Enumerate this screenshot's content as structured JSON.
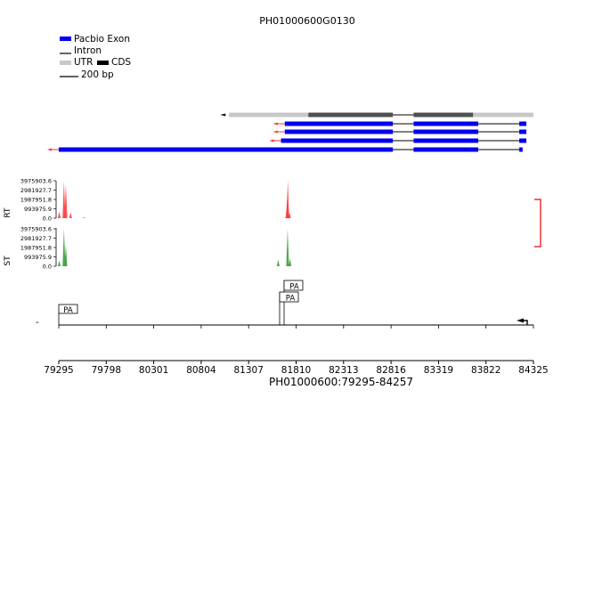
{
  "title": "PH01000600G0130",
  "legend": {
    "pacbio_exon": "Pacbio Exon",
    "intron": "Intron",
    "utr": "UTR",
    "cds": "CDS",
    "scale_bar": "200 bp"
  },
  "colors": {
    "exon": "#0000ee",
    "utr": "#c8c8c8",
    "cds": "#505050",
    "rt": "#ff3333",
    "st": "#339933",
    "bracket": "#ee0000"
  },
  "tracks": {
    "rt_label": "RT",
    "st_label": "ST",
    "rt_ticks": [
      "3975903.6",
      "2981927.7",
      "1987951.8",
      "993975.9",
      "0.0"
    ],
    "st_ticks": [
      "3975903.6",
      "2981927.7",
      "1987951.8",
      "993975.9",
      "0.0"
    ]
  },
  "pa_track": {
    "labels": [
      "PA",
      "PA",
      "PA"
    ],
    "dash": "-"
  },
  "axis": {
    "ticks": [
      "79295",
      "79798",
      "80301",
      "80804",
      "81307",
      "81810",
      "82313",
      "82816",
      "83319",
      "83822",
      "84325"
    ],
    "label": "PH01000600:79295-84257"
  },
  "chart_data": {
    "type": "area",
    "x_range": [
      79295,
      84325
    ],
    "gene_model": {
      "strand": "-",
      "utr": [
        [
          81100,
          81940
        ],
        [
          83315,
          84325
        ]
      ],
      "cds": [
        [
          81940,
          82835
        ],
        [
          83055,
          83685
        ]
      ]
    },
    "isoforms": [
      {
        "exons": [
          [
            81690,
            82835
          ],
          [
            83055,
            83740
          ],
          [
            84175,
            84250
          ]
        ]
      },
      {
        "exons": [
          [
            81690,
            82835
          ],
          [
            83055,
            83740
          ],
          [
            84175,
            84250
          ]
        ]
      },
      {
        "exons": [
          [
            81650,
            82835
          ],
          [
            83055,
            83740
          ],
          [
            84175,
            84250
          ]
        ]
      },
      {
        "exons": [
          [
            79295,
            82835
          ],
          [
            83055,
            83740
          ],
          [
            84175,
            84210
          ]
        ]
      }
    ],
    "coverage": {
      "ylim": [
        0,
        3975903.6
      ],
      "rt_peaks": [
        {
          "x": 79300,
          "y": 700000
        },
        {
          "x": 79350,
          "y": 3975903.6
        },
        {
          "x": 79370,
          "y": 3600000
        },
        {
          "x": 79420,
          "y": 600000
        },
        {
          "x": 79560,
          "y": 100000
        },
        {
          "x": 81700,
          "y": 100000
        },
        {
          "x": 81715,
          "y": 2000000
        },
        {
          "x": 81722,
          "y": 3975903.6
        },
        {
          "x": 81740,
          "y": 600000
        }
      ],
      "st_peaks": [
        {
          "x": 79300,
          "y": 600000
        },
        {
          "x": 79350,
          "y": 3975903.6
        },
        {
          "x": 79370,
          "y": 2300000
        },
        {
          "x": 81620,
          "y": 700000
        },
        {
          "x": 81720,
          "y": 3975903.6
        },
        {
          "x": 81745,
          "y": 800000
        }
      ]
    },
    "pa_sites": [
      79300,
      81630,
      81680,
      81740
    ],
    "tss": 84220
  }
}
